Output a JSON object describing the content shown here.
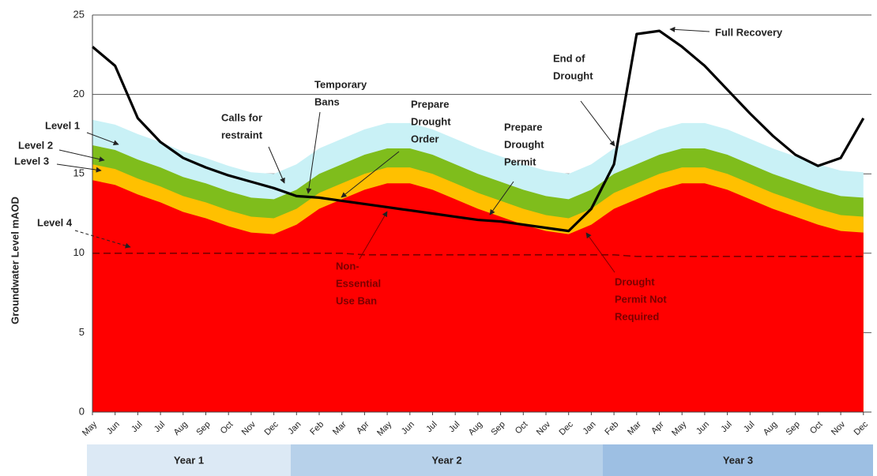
{
  "chart_data": {
    "type": "area",
    "y_label": "Groundwater Level mAOD",
    "categories": [
      "May",
      "Jun",
      "Jul",
      "Jul",
      "Aug",
      "Sep",
      "Oct",
      "Nov",
      "Dec",
      "Jan",
      "Feb",
      "Mar",
      "Apr",
      "May",
      "Jun",
      "Jul",
      "Jul",
      "Aug",
      "Sep",
      "Oct",
      "Nov",
      "Dec",
      "Jan",
      "Feb",
      "Mar",
      "Apr",
      "May",
      "Jun",
      "Jul",
      "Jul",
      "Aug",
      "Sep",
      "Oct",
      "Nov",
      "Dec"
    ],
    "ylim": [
      0,
      25
    ],
    "yticks": [
      0,
      5,
      10,
      15,
      20,
      25
    ],
    "grid": true,
    "series": [
      {
        "name": "Level 1",
        "kind": "area",
        "color": "#c9f1f6",
        "values": [
          18.4,
          18.1,
          17.5,
          17.0,
          16.4,
          16.0,
          15.5,
          15.1,
          15.0,
          15.6,
          16.6,
          17.2,
          17.8,
          18.2,
          18.2,
          17.8,
          17.2,
          16.6,
          16.1,
          15.6,
          15.2,
          15.0,
          15.6,
          16.6,
          17.2,
          17.8,
          18.2,
          18.2,
          17.8,
          17.2,
          16.6,
          16.1,
          15.6,
          15.2,
          15.1
        ]
      },
      {
        "name": "Level 2",
        "kind": "area",
        "color": "#7fbd1c",
        "values": [
          16.8,
          16.5,
          15.9,
          15.4,
          14.8,
          14.4,
          13.9,
          13.5,
          13.4,
          14.0,
          15.0,
          15.6,
          16.2,
          16.6,
          16.6,
          16.2,
          15.6,
          15.0,
          14.5,
          14.0,
          13.6,
          13.4,
          14.0,
          15.0,
          15.6,
          16.2,
          16.6,
          16.6,
          16.2,
          15.6,
          15.0,
          14.5,
          14.0,
          13.6,
          13.5
        ]
      },
      {
        "name": "Level 3",
        "kind": "area",
        "color": "#ffc000",
        "values": [
          15.6,
          15.3,
          14.7,
          14.2,
          13.6,
          13.2,
          12.7,
          12.3,
          12.2,
          12.8,
          13.8,
          14.4,
          15.0,
          15.4,
          15.4,
          15.0,
          14.4,
          13.8,
          13.3,
          12.8,
          12.4,
          12.2,
          12.8,
          13.8,
          14.4,
          15.0,
          15.4,
          15.4,
          15.0,
          14.4,
          13.8,
          13.3,
          12.8,
          12.4,
          12.3
        ]
      },
      {
        "kind": "area",
        "color": "#ff0000",
        "values": [
          14.6,
          14.3,
          13.7,
          13.2,
          12.6,
          12.2,
          11.7,
          11.3,
          11.2,
          11.8,
          12.8,
          13.4,
          14.0,
          14.4,
          14.4,
          14.0,
          13.4,
          12.8,
          12.3,
          11.8,
          11.4,
          11.2,
          11.8,
          12.8,
          13.4,
          14.0,
          14.4,
          14.4,
          14.0,
          13.4,
          12.8,
          12.3,
          11.8,
          11.4,
          11.3
        ]
      },
      {
        "name": "Level 4",
        "kind": "dashed",
        "color": "#7a0000",
        "values": [
          10.0,
          10.0,
          10.0,
          10.0,
          10.0,
          10.0,
          10.0,
          10.0,
          10.0,
          10.0,
          10.0,
          10.0,
          9.9,
          9.9,
          9.9,
          9.9,
          9.9,
          9.9,
          9.9,
          9.9,
          9.9,
          9.9,
          9.9,
          9.9,
          9.8,
          9.8,
          9.8,
          9.8,
          9.8,
          9.8,
          9.8,
          9.8,
          9.8,
          9.8,
          9.8
        ]
      },
      {
        "kind": "line",
        "color": "#000000",
        "values": [
          23.0,
          21.8,
          18.5,
          17.0,
          16.0,
          15.4,
          14.9,
          14.5,
          14.1,
          13.6,
          13.5,
          13.3,
          13.1,
          12.9,
          12.7,
          12.5,
          12.3,
          12.1,
          12.0,
          11.8,
          11.6,
          11.4,
          12.8,
          15.6,
          23.8,
          24.0,
          23.0,
          21.8,
          20.3,
          18.8,
          17.4,
          16.2,
          15.5,
          16.0,
          18.5
        ]
      }
    ],
    "annotations": [
      {
        "lines": [
          "Full Recovery"
        ]
      },
      {
        "lines": [
          "End of",
          "Drought"
        ]
      },
      {
        "lines": [
          "Temporary",
          "Bans"
        ]
      },
      {
        "lines": [
          "Calls for",
          "restraint"
        ]
      },
      {
        "lines": [
          "Prepare",
          "Drought",
          "Order"
        ]
      },
      {
        "lines": [
          "Prepare",
          "Drought",
          "Permit"
        ]
      },
      {
        "lines": [
          "Non-",
          "Essential",
          "Use Ban"
        ]
      },
      {
        "lines": [
          "Drought",
          "Permit Not",
          "Required"
        ]
      }
    ],
    "periods": [
      "Year 1",
      "Year 2",
      "Year 3"
    ]
  }
}
